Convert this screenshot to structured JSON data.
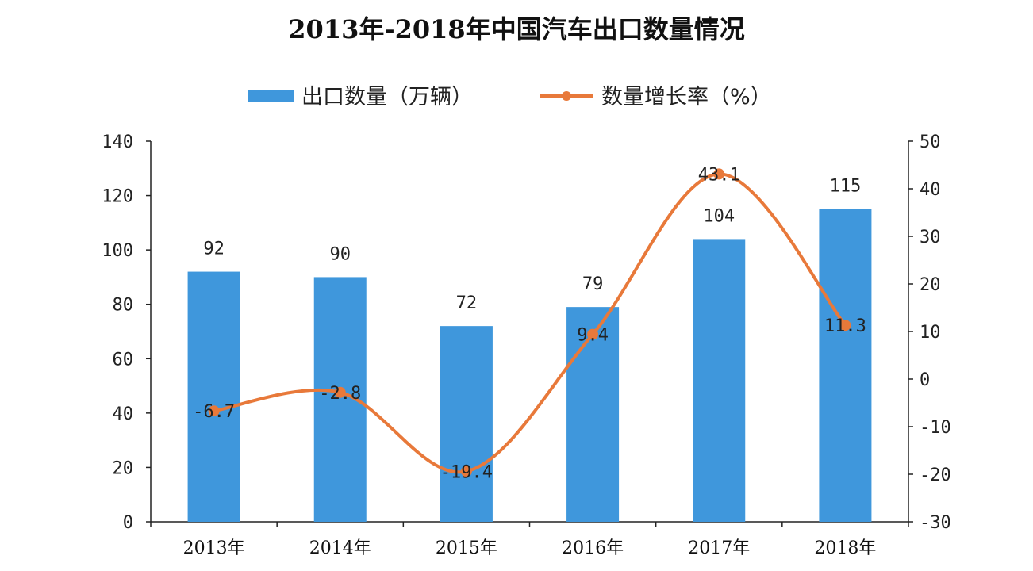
{
  "chart_data": {
    "type": "bar",
    "title": "2013年-2018年中国汽车出口数量情况",
    "categories": [
      "2013年",
      "2014年",
      "2015年",
      "2016年",
      "2017年",
      "2018年"
    ],
    "series": [
      {
        "name": "出口数量（万辆）",
        "type": "bar",
        "axis": "left",
        "color": "#3f97dc",
        "values": [
          92,
          90,
          72,
          79,
          104,
          115
        ]
      },
      {
        "name": "数量增长率（%）",
        "type": "line",
        "axis": "right",
        "color": "#e8793a",
        "values": [
          -6.7,
          -2.8,
          -19.4,
          9.4,
          43.1,
          11.3
        ]
      }
    ],
    "y_left": {
      "min": 0,
      "max": 140,
      "ticks": [
        "0",
        "20",
        "40",
        "60",
        "80",
        "100",
        "120",
        "140"
      ]
    },
    "y_right": {
      "min": -30,
      "max": 50,
      "ticks": [
        "-30",
        "-20",
        "-10",
        "0",
        "10",
        "20",
        "30",
        "40",
        "50"
      ]
    },
    "bar_labels": [
      "92",
      "90",
      "72",
      "79",
      "104",
      "115"
    ],
    "rate_labels": [
      "-6.7",
      "-2.8",
      "-19.4",
      "9.4",
      "43.1",
      "11.3"
    ],
    "legend_position": "top",
    "grid": false
  }
}
